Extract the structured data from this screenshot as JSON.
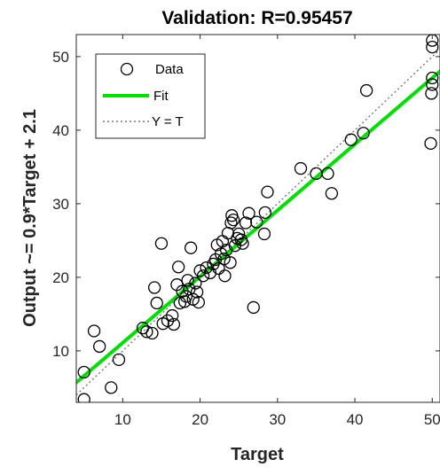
{
  "chart_data": {
    "type": "scatter",
    "title": "Validation: R=0.95457",
    "xlabel": "Target",
    "ylabel": "Output ~= 0.9*Target + 2.1",
    "xlim": [
      4,
      51
    ],
    "ylim": [
      3,
      53
    ],
    "xticks": [
      10,
      20,
      30,
      40,
      50
    ],
    "yticks": [
      10,
      20,
      30,
      40,
      50
    ],
    "grid": false,
    "legend_position": "top-left",
    "legend": [
      {
        "key": "data",
        "label": "Data"
      },
      {
        "key": "fit",
        "label": "Fit"
      },
      {
        "key": "identity",
        "label": "Y = T"
      }
    ],
    "fit": {
      "slope": 0.9,
      "intercept": 2.1
    },
    "colors": {
      "fit": "#00e000",
      "markers": "#000000",
      "identity": "#777777"
    },
    "points": [
      {
        "x": 5.0,
        "y": 7.1
      },
      {
        "x": 5.0,
        "y": 3.4
      },
      {
        "x": 6.3,
        "y": 12.7
      },
      {
        "x": 7.0,
        "y": 10.6
      },
      {
        "x": 8.5,
        "y": 5.0
      },
      {
        "x": 9.5,
        "y": 8.8
      },
      {
        "x": 12.6,
        "y": 13.1
      },
      {
        "x": 13.1,
        "y": 12.6
      },
      {
        "x": 13.8,
        "y": 12.4
      },
      {
        "x": 14.1,
        "y": 18.6
      },
      {
        "x": 14.4,
        "y": 16.5
      },
      {
        "x": 15.0,
        "y": 24.6
      },
      {
        "x": 15.2,
        "y": 13.7
      },
      {
        "x": 15.8,
        "y": 14.1
      },
      {
        "x": 16.4,
        "y": 14.8
      },
      {
        "x": 16.6,
        "y": 13.6
      },
      {
        "x": 17.0,
        "y": 19.0
      },
      {
        "x": 17.2,
        "y": 21.4
      },
      {
        "x": 17.4,
        "y": 16.5
      },
      {
        "x": 17.7,
        "y": 18.1
      },
      {
        "x": 18.0,
        "y": 16.7
      },
      {
        "x": 18.2,
        "y": 17.4
      },
      {
        "x": 18.4,
        "y": 19.6
      },
      {
        "x": 18.6,
        "y": 18.4
      },
      {
        "x": 18.8,
        "y": 24.0
      },
      {
        "x": 19.1,
        "y": 17.0
      },
      {
        "x": 19.4,
        "y": 19.2
      },
      {
        "x": 19.6,
        "y": 18.0
      },
      {
        "x": 19.8,
        "y": 16.6
      },
      {
        "x": 20.0,
        "y": 20.9
      },
      {
        "x": 20.4,
        "y": 20.2
      },
      {
        "x": 20.8,
        "y": 21.3
      },
      {
        "x": 21.3,
        "y": 20.6
      },
      {
        "x": 21.7,
        "y": 21.8
      },
      {
        "x": 22.0,
        "y": 22.4
      },
      {
        "x": 22.2,
        "y": 24.4
      },
      {
        "x": 22.4,
        "y": 21.2
      },
      {
        "x": 22.7,
        "y": 23.2
      },
      {
        "x": 22.9,
        "y": 24.9
      },
      {
        "x": 23.1,
        "y": 22.5
      },
      {
        "x": 23.2,
        "y": 20.2
      },
      {
        "x": 23.4,
        "y": 23.7
      },
      {
        "x": 23.6,
        "y": 26.0
      },
      {
        "x": 23.9,
        "y": 22.0
      },
      {
        "x": 24.0,
        "y": 27.4
      },
      {
        "x": 24.1,
        "y": 28.4
      },
      {
        "x": 24.3,
        "y": 27.8
      },
      {
        "x": 24.5,
        "y": 24.3
      },
      {
        "x": 24.8,
        "y": 25.3
      },
      {
        "x": 25.0,
        "y": 25.9
      },
      {
        "x": 25.3,
        "y": 25.1
      },
      {
        "x": 25.5,
        "y": 24.6
      },
      {
        "x": 25.9,
        "y": 27.4
      },
      {
        "x": 26.3,
        "y": 28.7
      },
      {
        "x": 26.9,
        "y": 15.9
      },
      {
        "x": 27.3,
        "y": 27.5
      },
      {
        "x": 28.3,
        "y": 25.9
      },
      {
        "x": 28.4,
        "y": 28.8
      },
      {
        "x": 28.7,
        "y": 31.6
      },
      {
        "x": 33.0,
        "y": 34.8
      },
      {
        "x": 35.0,
        "y": 34.1
      },
      {
        "x": 36.5,
        "y": 34.1
      },
      {
        "x": 37.0,
        "y": 31.4
      },
      {
        "x": 39.5,
        "y": 38.7
      },
      {
        "x": 41.1,
        "y": 39.6
      },
      {
        "x": 41.5,
        "y": 45.4
      },
      {
        "x": 49.8,
        "y": 38.2
      },
      {
        "x": 49.9,
        "y": 45.0
      },
      {
        "x": 50.0,
        "y": 46.2
      },
      {
        "x": 50.0,
        "y": 47.1
      },
      {
        "x": 50.0,
        "y": 51.3
      },
      {
        "x": 50.0,
        "y": 52.2
      }
    ]
  }
}
